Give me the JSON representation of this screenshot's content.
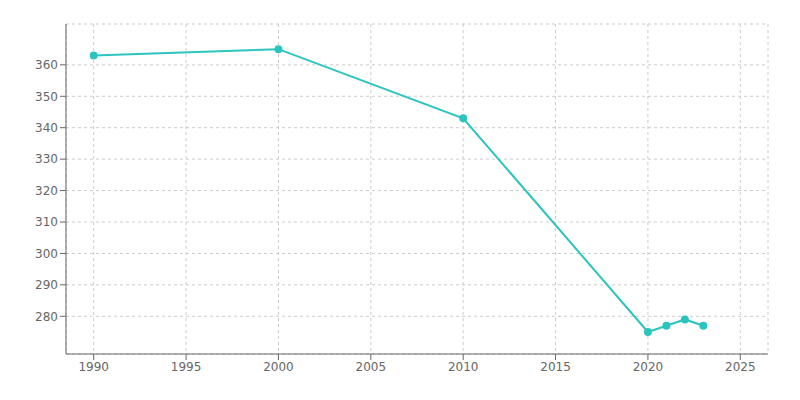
{
  "chart_data": {
    "type": "line",
    "x": [
      1990,
      2000,
      2010,
      2020,
      2021,
      2022,
      2023
    ],
    "values": [
      363,
      365,
      343,
      275,
      277,
      279,
      277
    ],
    "color": "#2bc4bf",
    "xlim": [
      1988.5,
      2026.5
    ],
    "ylim": [
      268,
      373
    ],
    "xticks": [
      1990,
      1995,
      2000,
      2005,
      2010,
      2015,
      2020,
      2025
    ],
    "yticks": [
      280,
      290,
      300,
      310,
      320,
      330,
      340,
      350,
      360
    ],
    "grid": true,
    "marker": "circle"
  }
}
